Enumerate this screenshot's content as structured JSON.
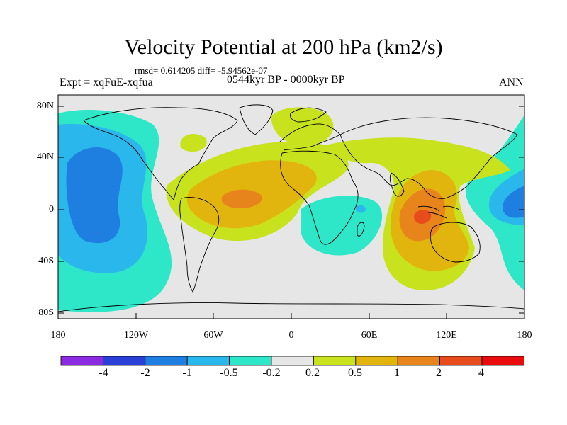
{
  "title": "Velocity Potential at 200 hPa (km2/s)",
  "stats": "rmsd= 0.614205 diff= -5.94562e-07",
  "experiment": "Expt = xqFuE-xqfua",
  "period": "0544kyr BP - 0000kyr BP",
  "season": "ANN",
  "lat_labels": [
    "80N",
    "40N",
    "0",
    "40S",
    "80S"
  ],
  "lon_labels": [
    "180",
    "120W",
    "60W",
    "0",
    "60E",
    "120E",
    "180"
  ],
  "colorbar": {
    "labels": [
      "-4",
      "-2",
      "-1",
      "-0.5",
      "-0.2",
      "0.2",
      "0.5",
      "1",
      "2",
      "4"
    ],
    "colors": [
      "#8a2be2",
      "#2a3fd6",
      "#1e7fe0",
      "#2ab7ec",
      "#2ee6c8",
      "#e6e6e6",
      "#c8e21e",
      "#e2b40e",
      "#e8841c",
      "#e84c1c",
      "#e80c0c"
    ]
  },
  "colors": {
    "background_field": "#e6e6e6",
    "coastline": "#000000"
  }
}
